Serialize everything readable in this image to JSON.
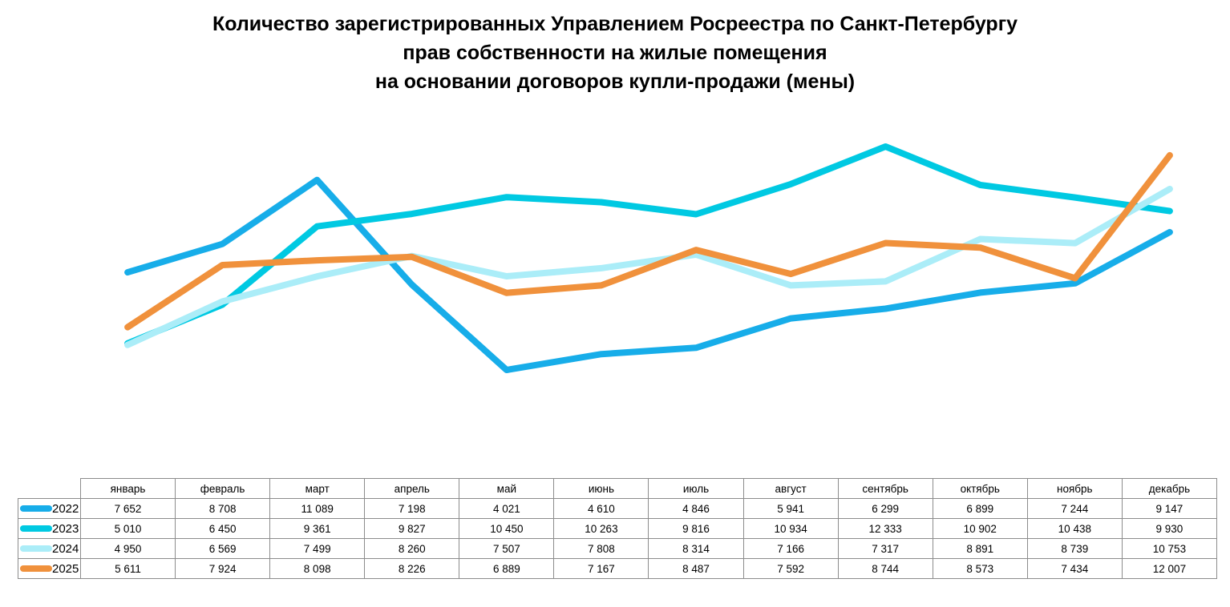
{
  "title": {
    "lines": [
      "Количество зарегистрированных Управлением Росреестра по Санкт-Петербургу",
      "прав собственности на жилые помещения",
      "на основании договоров купли-продажи (мены)"
    ]
  },
  "chart_data": {
    "type": "line",
    "title": "Количество зарегистрированных Управлением Росреестра по Санкт-Петербургу прав собственности на жилые помещения на основании договоров купли-продажи (мены)",
    "categories": [
      "январь",
      "февраль",
      "март",
      "апрель",
      "май",
      "июнь",
      "июль",
      "август",
      "сентябрь",
      "октябрь",
      "ноябрь",
      "декабрь"
    ],
    "series": [
      {
        "name": "2022",
        "color": "#17ADE9",
        "values": [
          7652,
          8708,
          11089,
          7198,
          4021,
          4610,
          4846,
          5941,
          6299,
          6899,
          7244,
          9147
        ]
      },
      {
        "name": "2023",
        "color": "#00C9E2",
        "values": [
          5010,
          6450,
          9361,
          9827,
          10450,
          10263,
          9816,
          10934,
          12333,
          10902,
          10438,
          9930
        ]
      },
      {
        "name": "2024",
        "color": "#ABEDF8",
        "values": [
          4950,
          6569,
          7499,
          8260,
          7507,
          7808,
          8314,
          7166,
          7317,
          8891,
          8739,
          10753
        ]
      },
      {
        "name": "2025",
        "color": "#F0913C",
        "values": [
          5611,
          7924,
          8098,
          8226,
          6889,
          7167,
          8487,
          7592,
          8744,
          8573,
          7434,
          12007
        ]
      }
    ],
    "xlabel": "",
    "ylabel": "",
    "ylim": [
      0,
      14000
    ],
    "grid": false,
    "legend_position": "table-left",
    "number_format": "space-thousands"
  }
}
